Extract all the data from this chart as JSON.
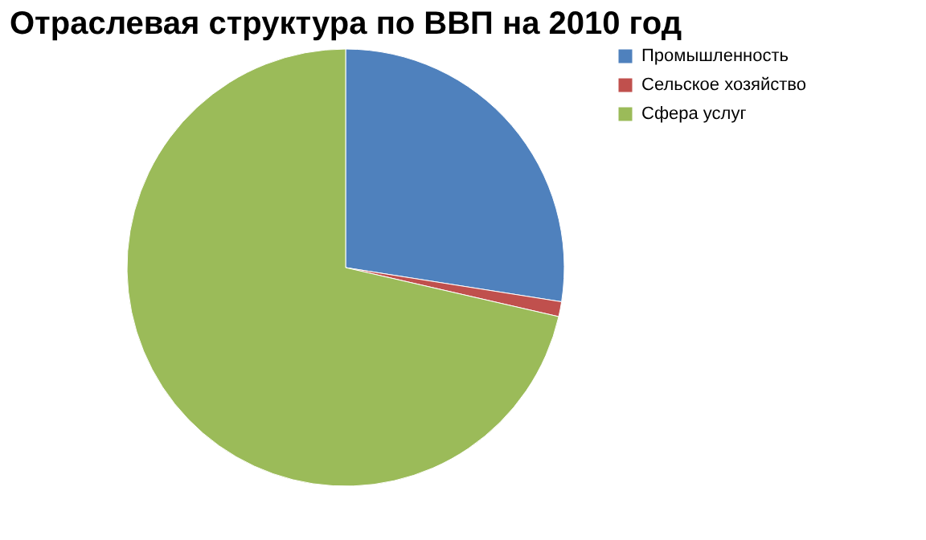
{
  "chart_data": {
    "type": "pie",
    "title": "Отраслевая структура по ВВП на 2010 год",
    "categories": [
      "Промышленность",
      "Сельское хозяйство",
      "Сфера услуг"
    ],
    "values": [
      27.5,
      1.1,
      71.4
    ],
    "colors": [
      "#4f81bd",
      "#c0504d",
      "#9bbb59"
    ],
    "legend": "right"
  }
}
